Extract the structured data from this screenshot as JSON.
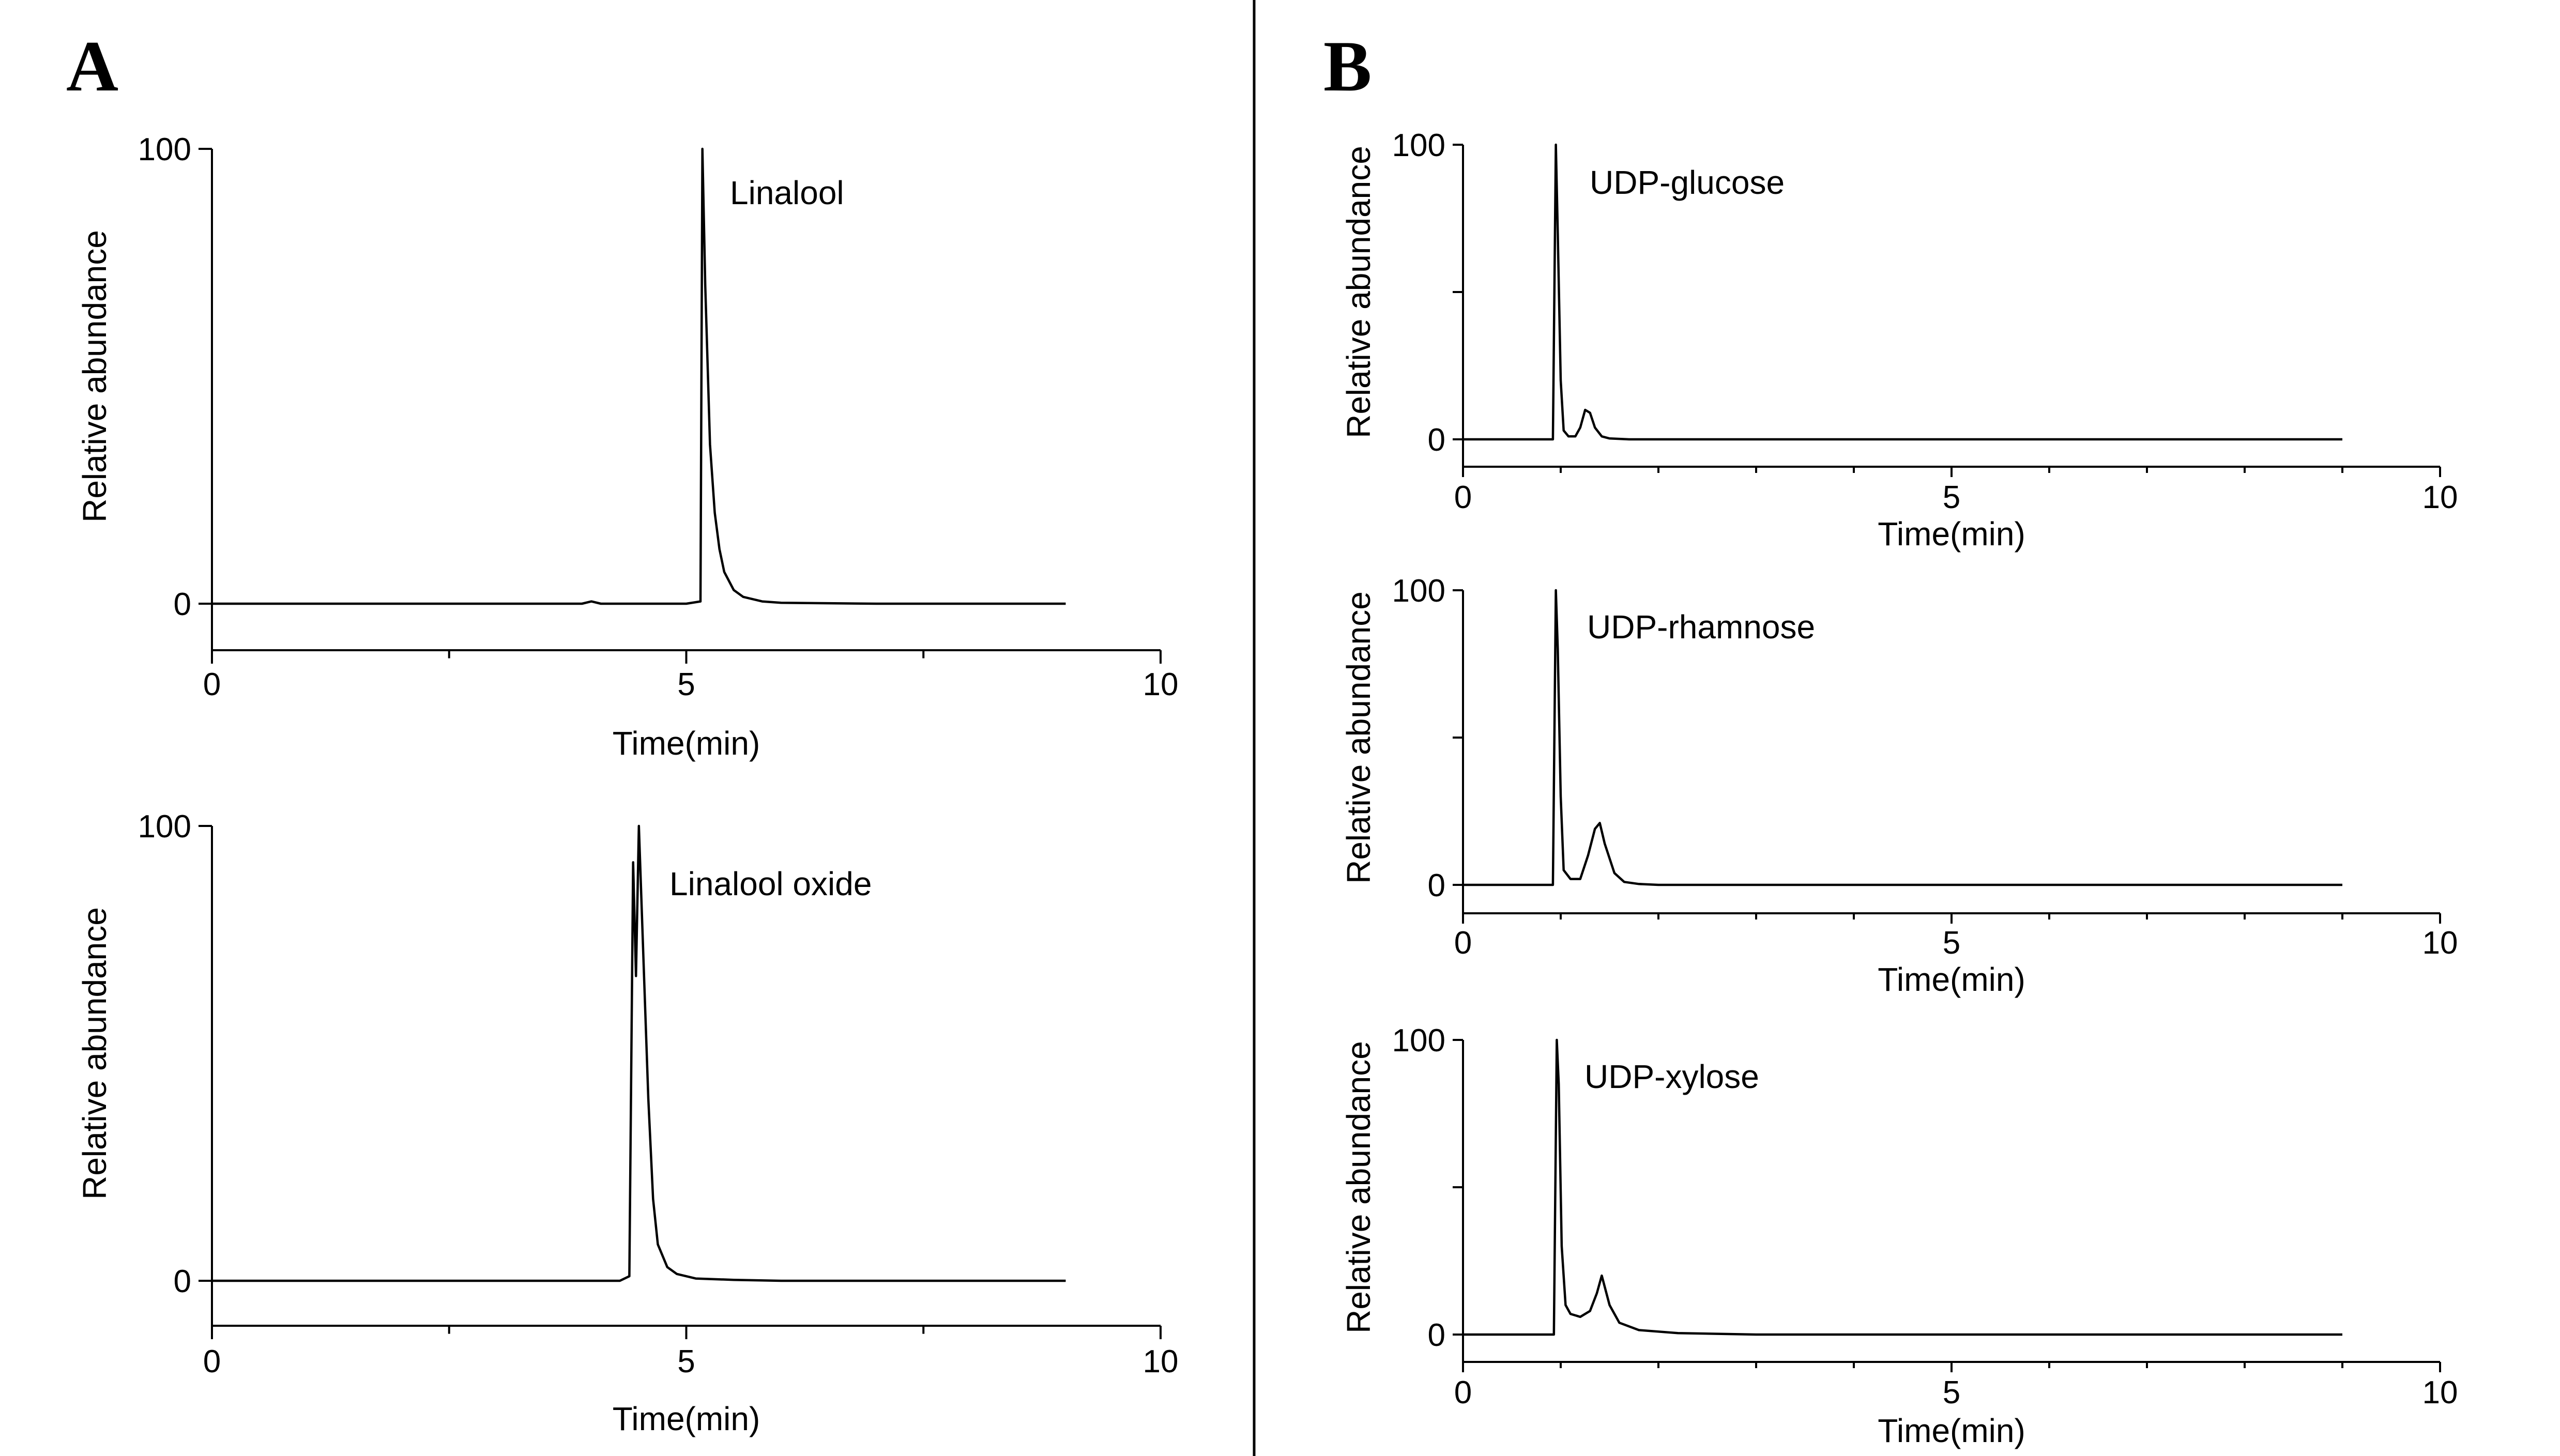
{
  "panels": [
    {
      "label": "A"
    },
    {
      "label": "B"
    }
  ],
  "chart_data": [
    {
      "panel": "A",
      "type": "line",
      "title": "",
      "xlabel": "Time(min)",
      "ylabel": "Relative abundance",
      "xlim": [
        0,
        10
      ],
      "ylim": [
        -10,
        100
      ],
      "xticks": [
        0,
        5,
        10
      ],
      "yticks": [
        0,
        100
      ],
      "annotations": [
        "Linalool"
      ],
      "series": [
        {
          "x": [
            0,
            3.9,
            4.0,
            4.1,
            5.0,
            5.15,
            5.17,
            5.2,
            5.25,
            5.3,
            5.35,
            5.4,
            5.5,
            5.6,
            5.8,
            6.0,
            7.0,
            9.0
          ],
          "values": [
            0,
            0,
            0.5,
            0,
            0,
            0.5,
            100,
            70,
            35,
            20,
            12,
            7,
            3,
            1.5,
            0.5,
            0.2,
            0,
            0
          ]
        }
      ]
    },
    {
      "panel": "A",
      "type": "line",
      "title": "",
      "xlabel": "Time(min)",
      "ylabel": "Relative abundance",
      "xlim": [
        0,
        10
      ],
      "ylim": [
        -10,
        100
      ],
      "xticks": [
        0,
        5,
        10
      ],
      "yticks": [
        0,
        100
      ],
      "annotations": [
        "Linalool oxide"
      ],
      "series": [
        {
          "x": [
            0,
            4.3,
            4.4,
            4.44,
            4.47,
            4.5,
            4.55,
            4.6,
            4.65,
            4.7,
            4.8,
            4.9,
            5.1,
            5.5,
            6.0,
            9.0
          ],
          "values": [
            0,
            0,
            1,
            92,
            67,
            100,
            70,
            40,
            18,
            8,
            3,
            1.5,
            0.5,
            0.2,
            0,
            0
          ]
        }
      ]
    },
    {
      "panel": "B",
      "type": "line",
      "title": "",
      "xlabel": "Time(min)",
      "ylabel": "Relative abundance",
      "xlim": [
        0,
        10
      ],
      "ylim": [
        -10,
        100
      ],
      "xticks": [
        0,
        5,
        10
      ],
      "yticks": [
        0,
        50,
        100
      ],
      "annotations": [
        "UDP-glucose"
      ],
      "series": [
        {
          "x": [
            0,
            0.92,
            0.95,
            0.97,
            1.0,
            1.03,
            1.08,
            1.15,
            1.2,
            1.25,
            1.3,
            1.35,
            1.42,
            1.5,
            1.7,
            2.0,
            9.0
          ],
          "values": [
            0,
            0,
            100,
            70,
            20,
            3,
            1,
            1,
            4,
            10,
            9,
            4,
            1,
            0.3,
            0,
            0,
            0
          ]
        }
      ]
    },
    {
      "panel": "B",
      "type": "line",
      "title": "",
      "xlabel": "Time(min)",
      "ylabel": "Relative abundance",
      "xlim": [
        0,
        10
      ],
      "ylim": [
        -10,
        100
      ],
      "xticks": [
        0,
        5,
        10
      ],
      "yticks": [
        0,
        50,
        100
      ],
      "annotations": [
        "UDP-rhamnose"
      ],
      "series": [
        {
          "x": [
            0,
            0.92,
            0.95,
            0.97,
            1.0,
            1.03,
            1.1,
            1.2,
            1.28,
            1.35,
            1.4,
            1.45,
            1.55,
            1.65,
            1.8,
            2.0,
            9.0
          ],
          "values": [
            0,
            0,
            100,
            80,
            30,
            5,
            2,
            2,
            10,
            19,
            21,
            14,
            4,
            1,
            0.3,
            0,
            0
          ]
        }
      ]
    },
    {
      "panel": "B",
      "type": "line",
      "title": "",
      "xlabel": "Time(min)",
      "ylabel": "Relative abundance",
      "xlim": [
        0,
        10
      ],
      "ylim": [
        -10,
        100
      ],
      "xticks": [
        0,
        5,
        10
      ],
      "yticks": [
        0,
        50,
        100
      ],
      "annotations": [
        "UDP-xylose"
      ],
      "series": [
        {
          "x": [
            0,
            0.93,
            0.96,
            0.98,
            1.01,
            1.05,
            1.1,
            1.2,
            1.3,
            1.37,
            1.42,
            1.5,
            1.6,
            1.8,
            2.2,
            3.0,
            9.0
          ],
          "values": [
            0,
            0,
            100,
            85,
            30,
            10,
            7,
            6,
            8,
            14,
            20,
            10,
            4,
            1.5,
            0.5,
            0,
            0
          ]
        }
      ]
    }
  ]
}
